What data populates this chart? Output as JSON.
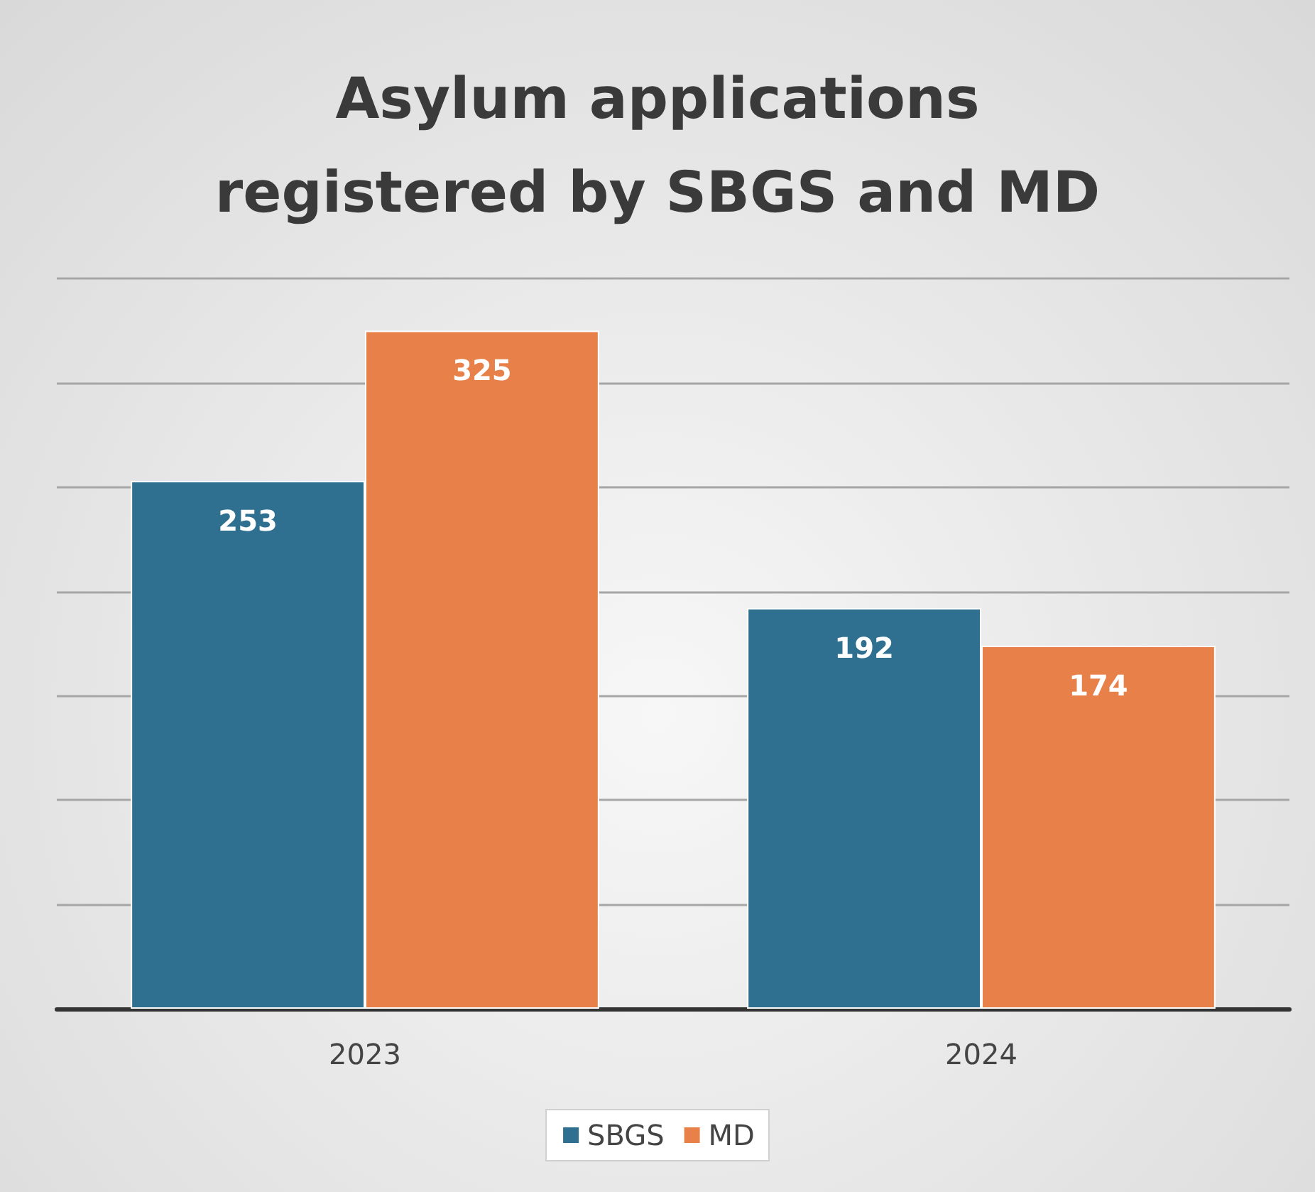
{
  "chart_data": {
    "type": "bar",
    "title": "Asylum applications\nregistered by SBGS and MD",
    "categories": [
      "2023",
      "2024"
    ],
    "series": [
      {
        "name": "SBGS",
        "color": "#2f6f8f",
        "values": [
          253,
          192
        ]
      },
      {
        "name": "MD",
        "color": "#e8804a",
        "values": [
          325,
          174
        ]
      }
    ],
    "ylim": [
      0,
      350
    ],
    "yticks": [
      {
        "value": 0,
        "label": null
      },
      {
        "value": 50,
        "label": null
      },
      {
        "value": 100,
        "label": null
      },
      {
        "value": 150,
        "label": null
      },
      {
        "value": 200,
        "label": null
      },
      {
        "value": 250,
        "label": null
      },
      {
        "value": 300,
        "label": null
      },
      {
        "value": 350,
        "label": null
      }
    ],
    "tick_labels": "x",
    "grid": "y",
    "legend": "bottom",
    "data_labels": true
  }
}
